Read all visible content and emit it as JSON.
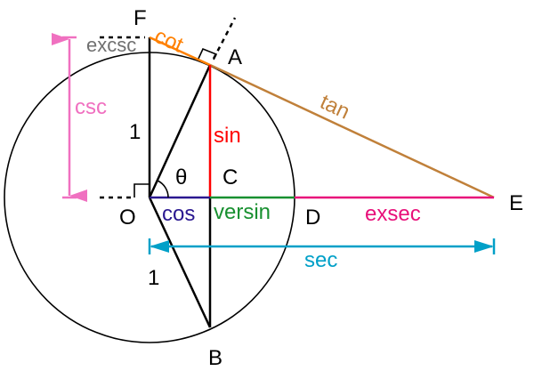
{
  "points": {
    "F": "F",
    "A": "A",
    "O": "O",
    "C": "C",
    "D": "D",
    "E": "E",
    "B": "B"
  },
  "angle": "θ",
  "radius_labels": [
    "1",
    "1"
  ],
  "segments": {
    "cot": "cot",
    "tan": "tan",
    "excsc": "excsc",
    "csc": "csc",
    "sin": "sin",
    "cos": "cos",
    "versin": "versin",
    "exsec": "exsec",
    "sec": "sec"
  },
  "colors": {
    "cot": "#ff8000",
    "tan": "#c0803a",
    "excsc": "#707070",
    "csc": "#f070c0",
    "sin": "#ff0000",
    "cos": "#2a1890",
    "versin": "#189030",
    "exsec": "#e8107a",
    "sec": "#00a0c8"
  }
}
